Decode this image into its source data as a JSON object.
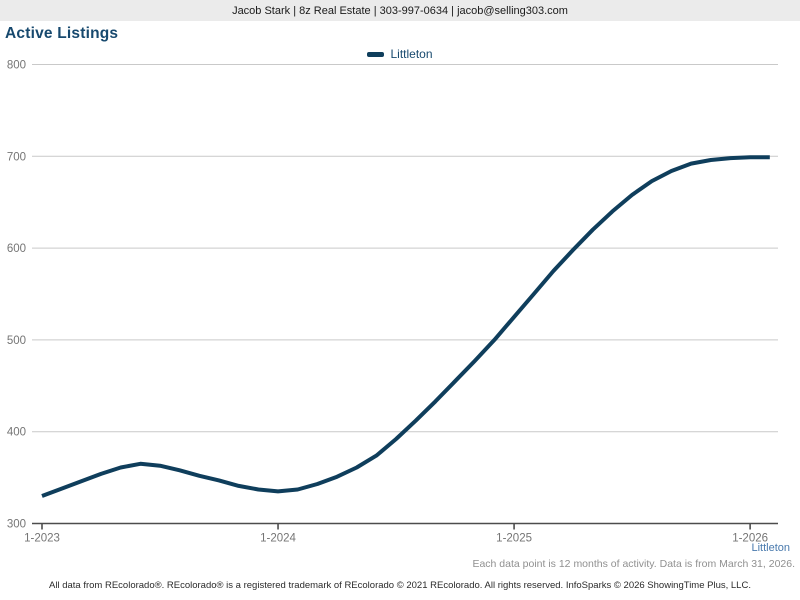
{
  "header": {
    "contact_line": "Jacob Stark | 8z Real Estate | 303-997-0634 | jacob@selling303.com"
  },
  "title": "Active Listings",
  "legend": {
    "label": "Littleton"
  },
  "footnotes": {
    "series_label": "Littleton",
    "data_note": "Each data point is 12 months of activity. Data is from March 31, 2026.",
    "disclaimer": "All data from REcolorado®. REcolorado® is a registered trademark of REcolorado © 2021 REcolorado. All rights reserved. InfoSparks © 2026 ShowingTime Plus, LLC."
  },
  "colors": {
    "line": "#0f3e5c",
    "title": "#17496e",
    "legend_text": "#17496e",
    "axis": "#4d4d4d",
    "grid": "#c9c9c9",
    "tick_label": "#757575",
    "note_gray": "#909090",
    "littleton_blue": "#4879ad",
    "footer_text": "#2b2b2b",
    "header_bg": "#ebebeb",
    "header_text": "#1a1a1a"
  },
  "chart_data": {
    "type": "line",
    "title": "Active Listings",
    "x": [
      "1-2023",
      "2-2023",
      "3-2023",
      "4-2023",
      "5-2023",
      "6-2023",
      "7-2023",
      "8-2023",
      "9-2023",
      "10-2023",
      "11-2023",
      "12-2023",
      "1-2024",
      "2-2024",
      "3-2024",
      "4-2024",
      "5-2024",
      "6-2024",
      "7-2024",
      "8-2024",
      "9-2024",
      "10-2024",
      "11-2024",
      "12-2024",
      "1-2025",
      "2-2025",
      "3-2025",
      "4-2025",
      "5-2025",
      "6-2025",
      "7-2025",
      "8-2025",
      "9-2025",
      "10-2025",
      "11-2025",
      "12-2025",
      "1-2026",
      "2-2026"
    ],
    "series": [
      {
        "name": "Littleton",
        "values": [
          330,
          338,
          346,
          354,
          361,
          365,
          363,
          358,
          352,
          347,
          341,
          337,
          335,
          337,
          343,
          351,
          361,
          374,
          392,
          412,
          433,
          455,
          477,
          500,
          525,
          550,
          575,
          598,
          620,
          640,
          658,
          673,
          684,
          692,
          696,
          698,
          699,
          699
        ]
      }
    ],
    "x_tick_labels": [
      "1-2023",
      "1-2024",
      "1-2025",
      "1-2026"
    ],
    "x_tick_indices": [
      0,
      12,
      24,
      36
    ],
    "y_ticks": [
      300,
      400,
      500,
      600,
      700,
      800
    ],
    "ylim": [
      300,
      800
    ],
    "grid": "horizontal-only",
    "legend_position": "top-center"
  }
}
